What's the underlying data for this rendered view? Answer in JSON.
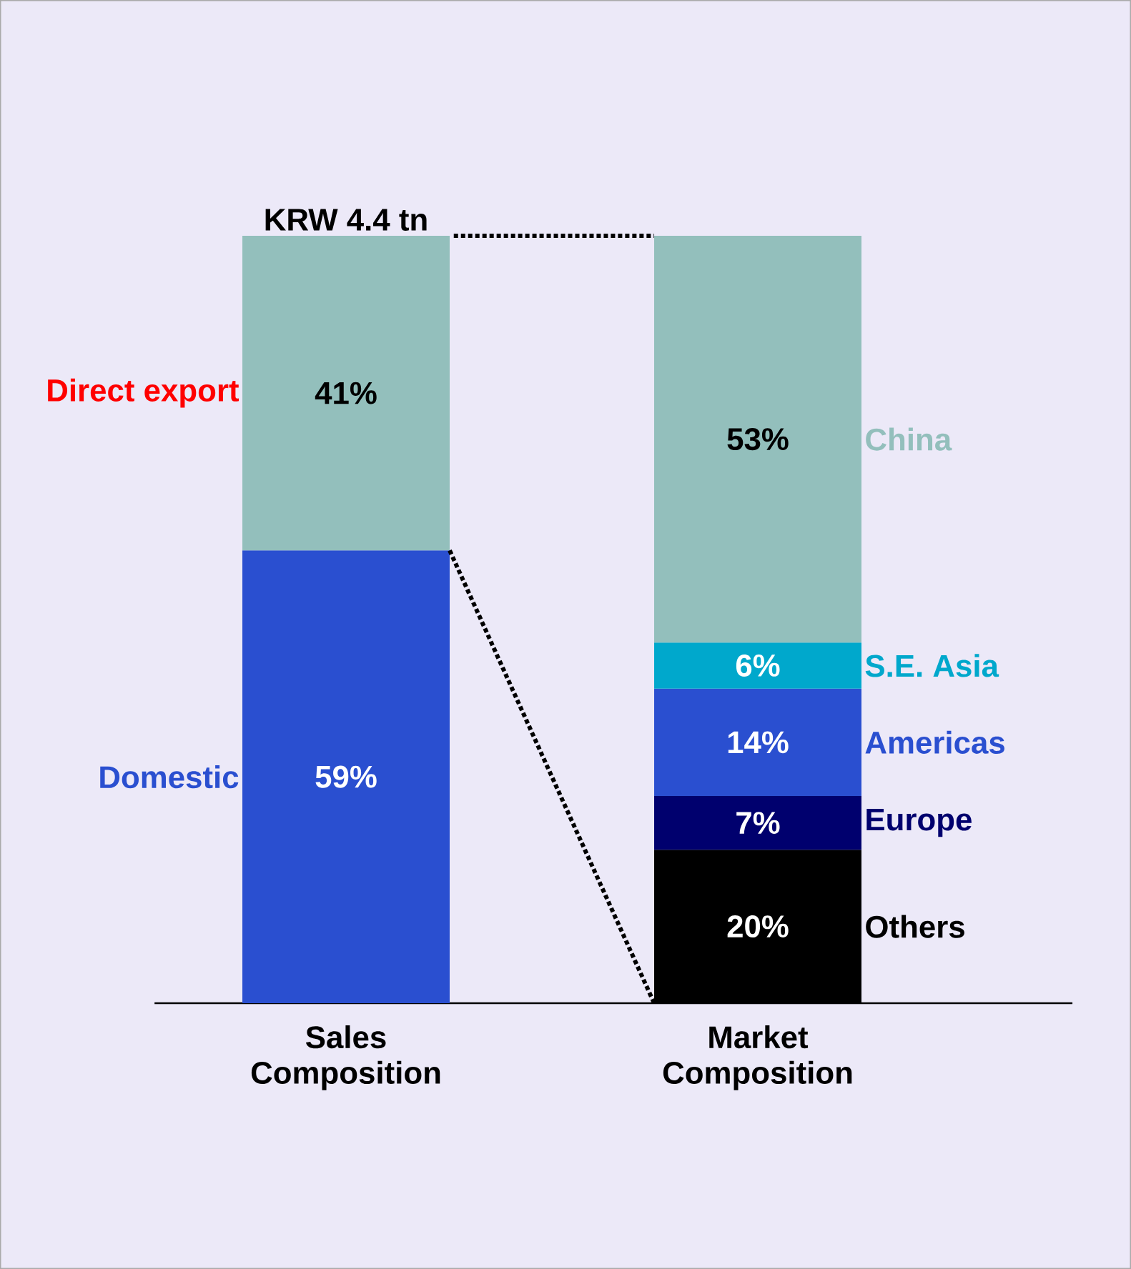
{
  "chart_data": {
    "type": "bar",
    "stacked": true,
    "categories": [
      "Sales Composition",
      "Market Composition"
    ],
    "series": [
      {
        "name": "Domestic",
        "color": "#2a4fd0",
        "values": [
          59,
          null
        ],
        "value_labels": [
          "59%",
          null
        ]
      },
      {
        "name": "Direct export",
        "color": "#93bfbc",
        "values": [
          41,
          null
        ],
        "value_labels": [
          "41%",
          null
        ]
      },
      {
        "name": "Others",
        "color": "#000000",
        "values": [
          null,
          20
        ],
        "value_labels": [
          null,
          "20%"
        ]
      },
      {
        "name": "Europe",
        "color": "#00006e",
        "values": [
          null,
          7
        ],
        "value_labels": [
          null,
          "7%"
        ]
      },
      {
        "name": "Americas",
        "color": "#2a4fd0",
        "values": [
          null,
          14
        ],
        "value_labels": [
          null,
          "14%"
        ]
      },
      {
        "name": "S.E. Asia",
        "color": "#00a8cc",
        "values": [
          null,
          6
        ],
        "value_labels": [
          null,
          "6%"
        ]
      },
      {
        "name": "China",
        "color": "#93bfbc",
        "values": [
          null,
          53
        ],
        "value_labels": [
          null,
          "53%"
        ]
      }
    ],
    "annotations": [
      {
        "text": "KRW 4.4 tn",
        "x": "Sales Composition",
        "y": 100
      }
    ]
  }
}
